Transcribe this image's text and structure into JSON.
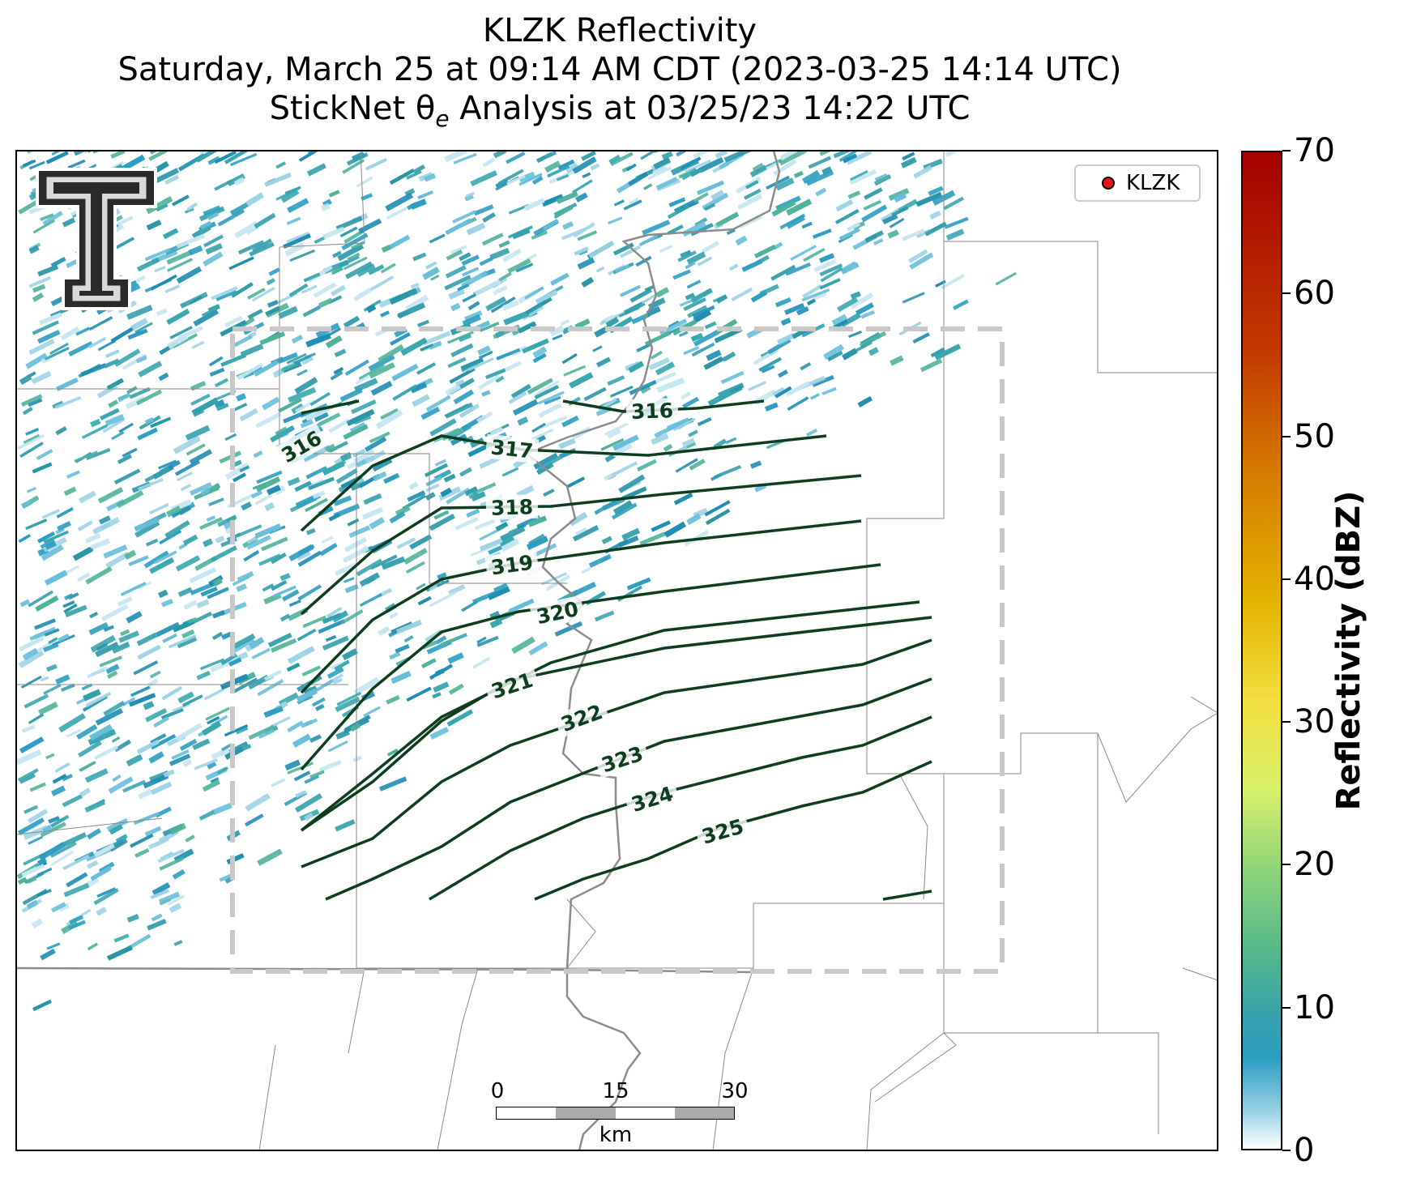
{
  "title": {
    "line1": "KLZK Reflectivity",
    "line2": "Saturday, March 25 at 09:14 AM CDT (2023-03-25 14:14 UTC)",
    "line3_prefix": "StickNet θ",
    "line3_sub": "e",
    "line3_suffix": " Analysis at 03/25/23 14:22 UTC"
  },
  "legend": {
    "label": "KLZK",
    "marker_color": "#e81515"
  },
  "colorbar": {
    "label": "Reflectivity (dBZ)",
    "ticks": [
      "0",
      "10",
      "20",
      "30",
      "40",
      "50",
      "60",
      "70"
    ],
    "range": [
      0,
      70
    ]
  },
  "scale_bar": {
    "ticks": [
      "0",
      "15",
      "30"
    ],
    "unit": "km"
  },
  "contours": {
    "levels": [
      "316",
      "316",
      "317",
      "318",
      "319",
      "320",
      "321",
      "322",
      "323",
      "324",
      "325"
    ],
    "color": "#0d3f1f"
  },
  "logo": {
    "name": "texas-tech-double-t",
    "alt": "Texas Tech double-T logo"
  },
  "colors": {
    "reflectivity_base": "#2d9ec2",
    "boundary_box": "#c8c8c8"
  }
}
